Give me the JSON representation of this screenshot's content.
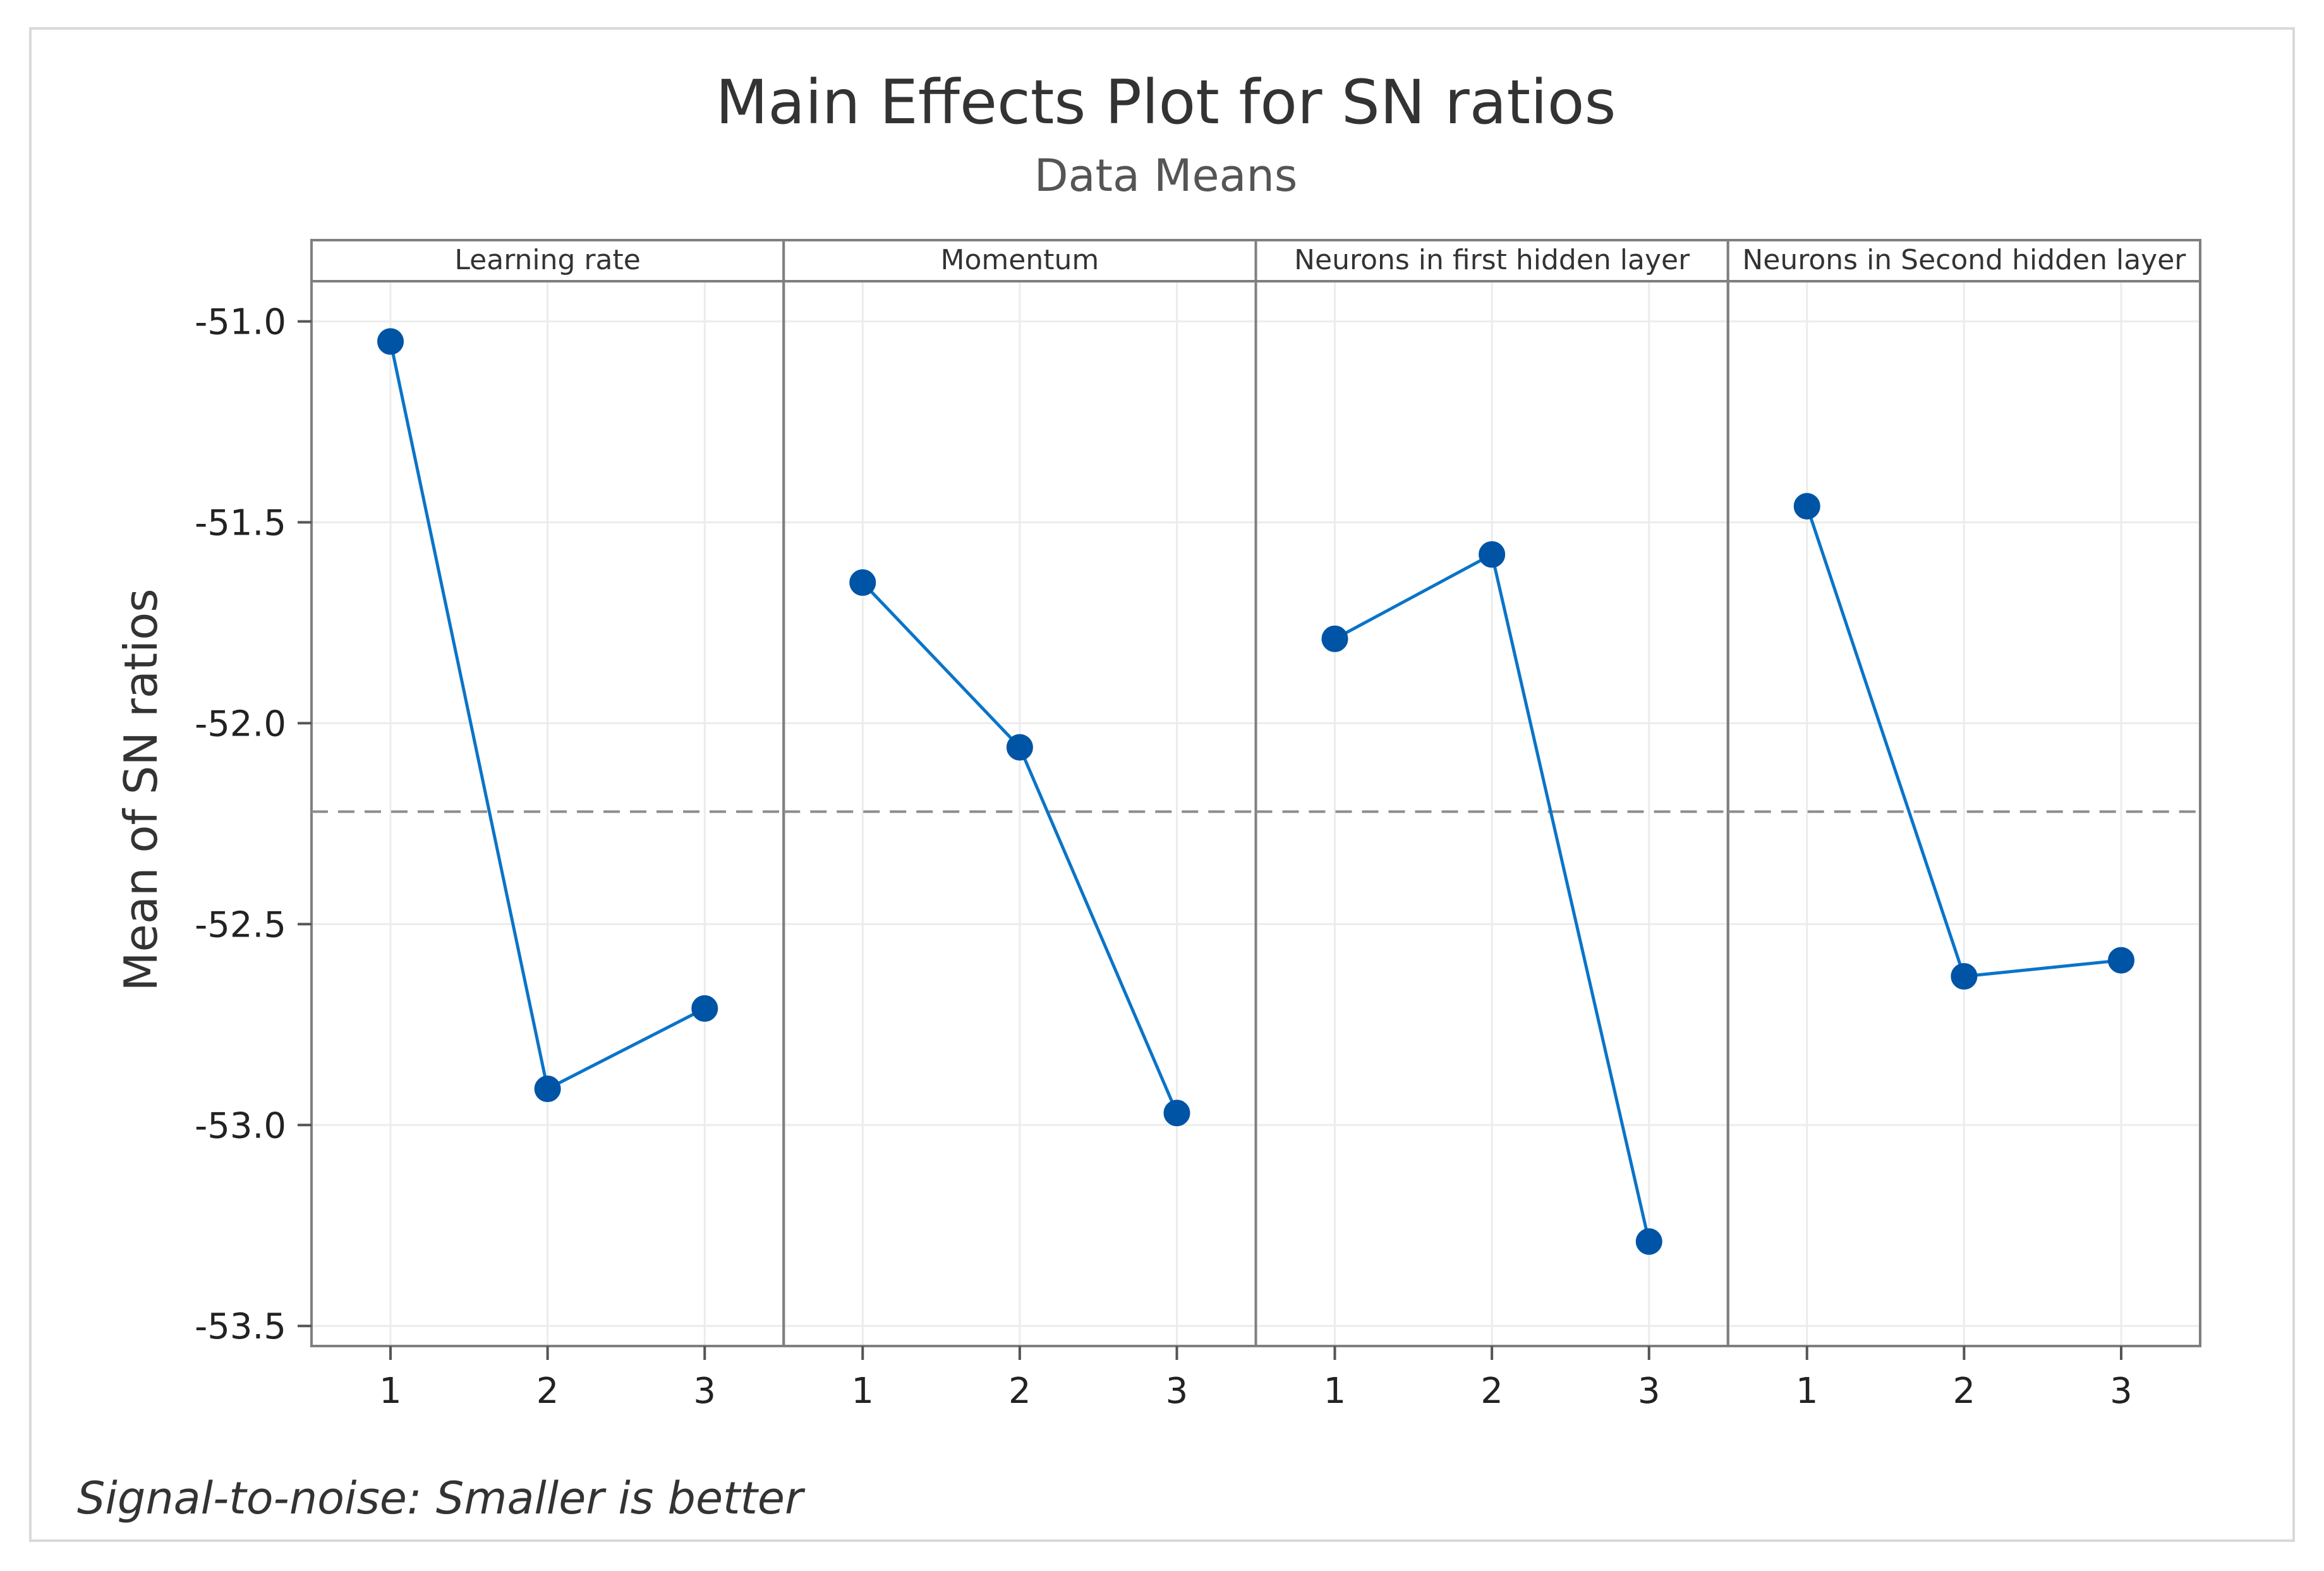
{
  "chart_data": {
    "type": "line",
    "title": "Main Effects Plot for SN ratios",
    "subtitle": "Data Means",
    "ylabel": "Mean of SN ratios",
    "xlabel": "",
    "ylim": [
      -53.55,
      -50.9
    ],
    "yticks": [
      -51.0,
      -51.5,
      -52.0,
      -52.5,
      -53.0,
      -53.5
    ],
    "ytick_labels": [
      "-51.0",
      "-51.5",
      "-52.0",
      "-52.5",
      "-53.0",
      "-53.5"
    ],
    "grid": true,
    "reference_line": -52.22,
    "reference_style": "dashed",
    "footnote": "Signal-to-noise: Smaller is better",
    "series_color": "#0054A6",
    "line_color": "#0A74C9",
    "panels": [
      {
        "name": "Learning rate",
        "levels": [
          "1",
          "2",
          "3"
        ],
        "values": [
          -51.05,
          -52.91,
          -52.71
        ]
      },
      {
        "name": "Momentum",
        "levels": [
          "1",
          "2",
          "3"
        ],
        "values": [
          -51.65,
          -52.06,
          -52.97
        ]
      },
      {
        "name": "Neurons in first hidden layer",
        "levels": [
          "1",
          "2",
          "3"
        ],
        "values": [
          -51.79,
          -51.58,
          -53.29
        ]
      },
      {
        "name": "Neurons in Second hidden layer",
        "levels": [
          "1",
          "2",
          "3"
        ],
        "values": [
          -51.46,
          -52.63,
          -52.59
        ]
      }
    ]
  }
}
